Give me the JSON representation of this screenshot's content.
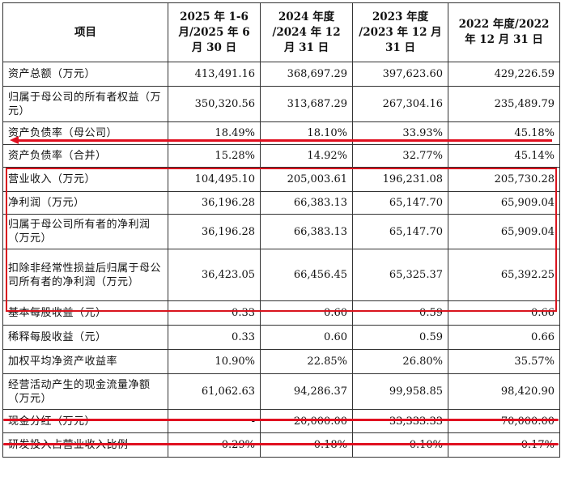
{
  "header": {
    "item": "项目",
    "col1": "2025 年 1-6 月/2025 年 6 月 30 日",
    "col2": "2024 年度 /2024 年 12 月 31 日",
    "col3": "2023 年度 /2023 年 12 月 31 日",
    "col4": "2022 年度/2022 年 12 月 31 日"
  },
  "rows": [
    {
      "label": "资产总额（万元）",
      "v1": "413,491.16",
      "v2": "368,697.29",
      "v3": "397,623.60",
      "v4": "429,226.59"
    },
    {
      "label": "归属于母公司的所有者权益（万元）",
      "v1": "350,320.56",
      "v2": "313,687.29",
      "v3": "267,304.16",
      "v4": "235,489.79"
    },
    {
      "label": "资产负债率（母公司）",
      "v1": "18.49%",
      "v2": "18.10%",
      "v3": "33.93%",
      "v4": "45.18%"
    },
    {
      "label": "资产负债率（合并）",
      "v1": "15.28%",
      "v2": "14.92%",
      "v3": "32.77%",
      "v4": "45.14%"
    },
    {
      "label": "营业收入（万元）",
      "v1": "104,495.10",
      "v2": "205,003.61",
      "v3": "196,231.08",
      "v4": "205,730.28"
    },
    {
      "label": "净利润（万元）",
      "v1": "36,196.28",
      "v2": "66,383.13",
      "v3": "65,147.70",
      "v4": "65,909.04"
    },
    {
      "label": "归属于母公司所有者的净利润（万元）",
      "v1": "36,196.28",
      "v2": "66,383.13",
      "v3": "65,147.70",
      "v4": "65,909.04"
    },
    {
      "label": "扣除非经常性损益后归属于母公司所有者的净利润（万元）",
      "v1": "36,423.05",
      "v2": "66,456.45",
      "v3": "65,325.37",
      "v4": "65,392.25"
    },
    {
      "label": "基本每股收益（元）",
      "v1": "0.33",
      "v2": "0.60",
      "v3": "0.59",
      "v4": "0.66"
    },
    {
      "label": "稀释每股收益（元）",
      "v1": "0.33",
      "v2": "0.60",
      "v3": "0.59",
      "v4": "0.66"
    },
    {
      "label": "加权平均净资产收益率",
      "v1": "10.90%",
      "v2": "22.85%",
      "v3": "26.80%",
      "v4": "35.57%"
    },
    {
      "label": "经营活动产生的现金流量净额（万元）",
      "v1": "61,062.63",
      "v2": "94,286.37",
      "v3": "99,958.85",
      "v4": "98,420.90"
    },
    {
      "label": "现金分红（万元）",
      "v1": "-",
      "v2": "20,000.00",
      "v3": "33,333.33",
      "v4": "70,000.00"
    },
    {
      "label": "研发投入占营业收入比例",
      "v1": "0.29%",
      "v2": "0.18%",
      "v3": "0.10%",
      "v4": "0.17%"
    }
  ],
  "colors": {
    "annotation": "#e01020",
    "border": "#333333"
  }
}
